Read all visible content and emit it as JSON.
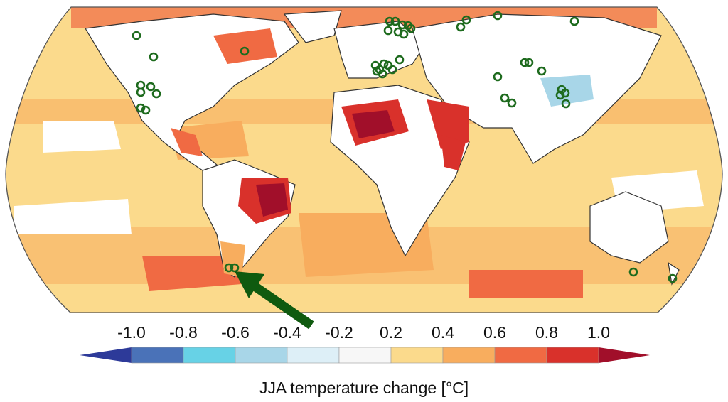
{
  "map": {
    "projection": "Robinson",
    "variable": "JJA temperature change",
    "continent_fill": "#ffffff",
    "coastline_color": "#333333",
    "site_marker_color": "#1e6b1e",
    "arrow_color": "#0f5a0f",
    "regions": [
      {
        "name": "Brazil interior",
        "level": 1.0
      },
      {
        "name": "Sahara / Libya",
        "level": 0.9
      },
      {
        "name": "Arabian Peninsula",
        "level": 0.85
      },
      {
        "name": "Horn of Africa",
        "level": 0.8
      },
      {
        "name": "Central America",
        "level": 0.7
      },
      {
        "name": "Northern Canada",
        "level": 0.7
      },
      {
        "name": "Southern Argentina",
        "level": 0.65
      },
      {
        "name": "Mongolia / Northern China",
        "level": -0.5
      }
    ],
    "sites": [
      {
        "region": "Pacific Northwest"
      },
      {
        "region": "California"
      },
      {
        "region": "Western North America"
      },
      {
        "region": "Scandinavia"
      },
      {
        "region": "Alps"
      },
      {
        "region": "Siberia"
      },
      {
        "region": "Tibetan Plateau"
      },
      {
        "region": "Mongolia"
      },
      {
        "region": "Patagonia"
      },
      {
        "region": "Southeast Australia"
      },
      {
        "region": "New Zealand"
      }
    ]
  },
  "colorbar": {
    "title": "JJA temperature change [°C]",
    "tick_labels": [
      "-1.0",
      "-0.8",
      "-0.6",
      "-0.4",
      "-0.2",
      "0.2",
      "0.4",
      "0.6",
      "0.8",
      "1.0"
    ],
    "bins": [
      {
        "color": "#4a72b8"
      },
      {
        "color": "#67d2e6"
      },
      {
        "color": "#a8d6e8"
      },
      {
        "color": "#ddeff7"
      },
      {
        "color": "#f7f7f7"
      },
      {
        "color": "#fbda8c"
      },
      {
        "color": "#f8ad5e"
      },
      {
        "color": "#f06a43"
      },
      {
        "color": "#d9312b"
      }
    ],
    "under_color": "#2d3a99",
    "over_color": "#a10f2a"
  }
}
